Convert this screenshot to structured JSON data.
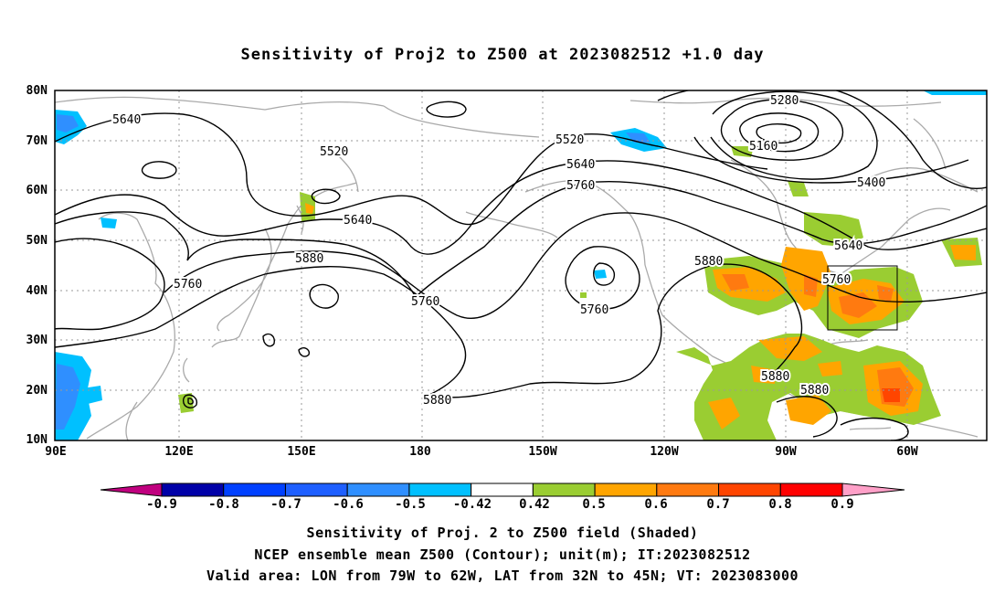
{
  "title": "Sensitivity of Proj2 to Z500 at 2023082512 +1.0 day",
  "lat_labels": [
    "80N",
    "70N",
    "60N",
    "50N",
    "40N",
    "30N",
    "20N",
    "10N"
  ],
  "lon_labels": [
    "90E",
    "120E",
    "150E",
    "180",
    "150W",
    "120W",
    "90W",
    "60W"
  ],
  "contour_labels": {
    "c5640_nw": "5640",
    "c5520_mid": "5520",
    "c5640_mid": "5640",
    "c5880_w": "5880",
    "c5760_w": "5760",
    "c5760_pac": "5760",
    "c5880_pac": "5880",
    "c5520_na": "5520",
    "c5640_na": "5640",
    "c5760_na": "5760",
    "c5280": "5280",
    "c5160": "5160",
    "c5400": "5400",
    "c5640_e": "5640",
    "c5880_us": "5880",
    "c5760_e": "5760",
    "c5760_low": "5760",
    "c5880_s1": "5880",
    "c5880_s2": "5880"
  },
  "colorbar": {
    "labels": [
      "-0.9",
      "-0.8",
      "-0.7",
      "-0.6",
      "-0.5",
      "-0.42",
      "0.42",
      "0.5",
      "0.6",
      "0.7",
      "0.8",
      "0.9"
    ],
    "colors": [
      "#0000a8",
      "#0040ff",
      "#1e5fff",
      "#2f8fff",
      "#00c0ff",
      "#ffffff",
      "#9acd32",
      "#ffa500",
      "#ff7a10",
      "#ff4500",
      "#ff0000"
    ],
    "low_end_color": "#c0007f",
    "high_end_color": "#ffa0c8"
  },
  "captions": [
    "Sensitivity of Proj. 2 to Z500 field (Shaded)",
    "NCEP ensemble mean Z500 (Contour); unit(m); IT:2023082512",
    "Valid area: LON from 79W to 62W, LAT from 32N to 45N; VT: 2023083000"
  ]
}
